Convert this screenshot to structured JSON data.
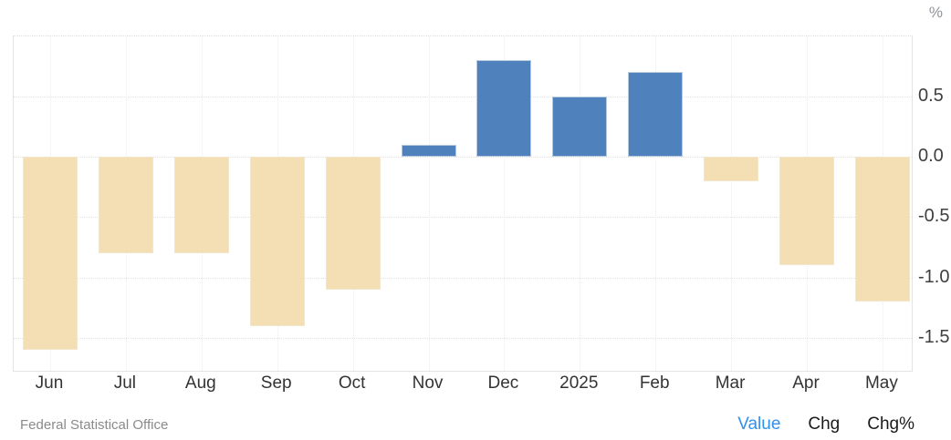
{
  "chart_data": {
    "type": "bar",
    "title": "",
    "categories": [
      "Jun",
      "Jul",
      "Aug",
      "Sep",
      "Oct",
      "Nov",
      "Dec",
      "2025",
      "Feb",
      "Mar",
      "Apr",
      "May"
    ],
    "values": [
      -1.6,
      -0.8,
      -0.8,
      -1.4,
      -1.1,
      0.1,
      0.8,
      0.5,
      0.7,
      -0.2,
      -0.9,
      -1.2
    ],
    "xlabel": "",
    "ylabel": "%",
    "ytick_labels": [
      "0.5",
      "0.0",
      "-0.5",
      "-1.0",
      "-1.5"
    ],
    "ytick_values": [
      0.5,
      0.0,
      -0.5,
      -1.0,
      -1.5
    ],
    "ylim": [
      -1.8,
      1.0
    ],
    "grid": true,
    "legend_position": "none",
    "positive_color": "#4f81bc",
    "negative_color": "#f4deb4"
  },
  "axis": {
    "unit_label": "%"
  },
  "footer": {
    "source": "Federal Statistical Office",
    "links": [
      {
        "label": "Value",
        "active": true
      },
      {
        "label": "Chg",
        "active": false
      },
      {
        "label": "Chg%",
        "active": false
      }
    ],
    "active_color": "#2f90ee",
    "inactive_color": "#1a1a1a"
  }
}
